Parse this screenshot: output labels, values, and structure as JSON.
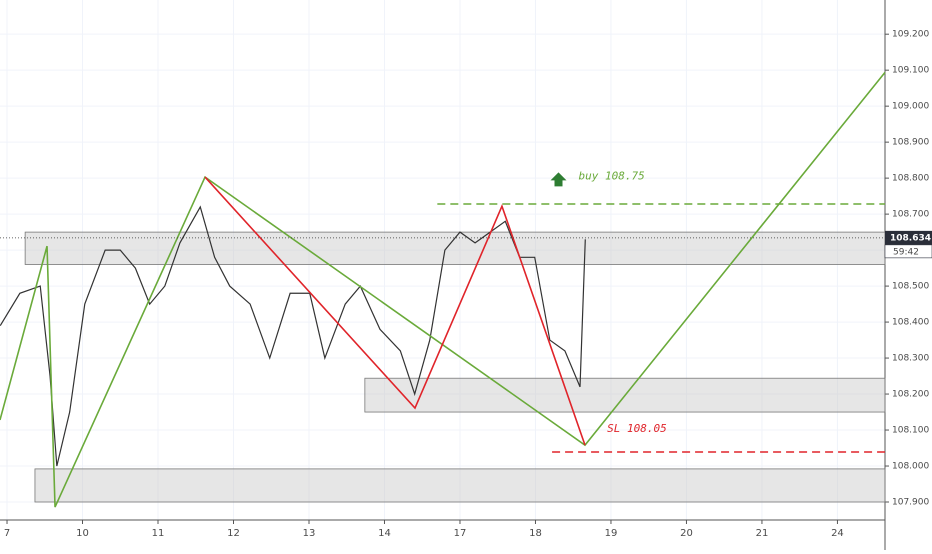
{
  "chart_data": {
    "type": "line",
    "xlim": [
      -0.093,
      11.63
    ],
    "ylim": [
      107.85,
      109.295
    ],
    "grid": true,
    "xticks": [
      {
        "value": 0,
        "label": "7"
      },
      {
        "value": 1,
        "label": "10"
      },
      {
        "value": 2,
        "label": "11"
      },
      {
        "value": 3,
        "label": "12"
      },
      {
        "value": 4,
        "label": "13"
      },
      {
        "value": 5,
        "label": "14"
      },
      {
        "value": 6,
        "label": "17"
      },
      {
        "value": 7,
        "label": "18"
      },
      {
        "value": 8,
        "label": "19"
      },
      {
        "value": 9,
        "label": "20"
      },
      {
        "value": 10,
        "label": "21"
      },
      {
        "value": 11,
        "label": "24"
      }
    ],
    "yticks": [
      {
        "value": 107.9,
        "label": "107.900"
      },
      {
        "value": 108.0,
        "label": "108.000"
      },
      {
        "value": 108.1,
        "label": "108.100"
      },
      {
        "value": 108.2,
        "label": "108.200"
      },
      {
        "value": 108.3,
        "label": "108.300"
      },
      {
        "value": 108.4,
        "label": "108.400"
      },
      {
        "value": 108.5,
        "label": "108.500"
      },
      {
        "value": 108.6,
        "label": "108.600"
      },
      {
        "value": 108.7,
        "label": "108.700"
      },
      {
        "value": 108.8,
        "label": "108.800"
      },
      {
        "value": 108.9,
        "label": "108.900"
      },
      {
        "value": 109.0,
        "label": "109.000"
      },
      {
        "value": 109.1,
        "label": "109.100"
      },
      {
        "value": 109.2,
        "label": "109.200"
      }
    ],
    "zones": [
      {
        "x": [
          0.24,
          11.63
        ],
        "y": [
          108.56,
          108.65
        ]
      },
      {
        "x": [
          4.74,
          11.63
        ],
        "y": [
          108.15,
          108.244
        ]
      },
      {
        "x": [
          0.37,
          11.63
        ],
        "y": [
          107.9,
          107.992
        ]
      }
    ],
    "series": [
      {
        "color": "#333333",
        "x": [
          -0.09,
          0.17,
          0.44,
          0.57,
          0.66,
          0.83,
          1.03,
          1.3,
          1.5,
          1.7,
          1.89,
          2.09,
          2.29,
          2.56,
          2.75,
          2.95,
          3.22,
          3.48,
          3.75,
          4.01,
          4.21,
          4.48,
          4.68,
          4.94,
          5.21,
          5.4,
          5.6,
          5.8,
          6.0,
          6.2,
          6.4,
          6.6,
          6.79,
          6.99,
          7.19,
          7.39,
          7.59,
          7.66
        ],
        "values": [
          108.39,
          108.48,
          108.5,
          108.25,
          108.0,
          108.15,
          108.45,
          108.6,
          108.6,
          108.55,
          108.45,
          108.5,
          108.62,
          108.72,
          108.58,
          108.5,
          108.45,
          108.3,
          108.48,
          108.48,
          108.3,
          108.45,
          108.5,
          108.38,
          108.32,
          108.2,
          108.35,
          108.6,
          108.65,
          108.62,
          108.65,
          108.68,
          108.58,
          108.58,
          108.35,
          108.32,
          108.22,
          108.63
        ]
      },
      {
        "color": "#6aaa3a",
        "x": [
          -0.093,
          0.53,
          0.636,
          2.623,
          7.656,
          11.63
        ],
        "values": [
          108.128,
          108.611,
          107.886,
          108.803,
          108.058,
          109.094
        ]
      },
      {
        "color": "#e0242a",
        "x": [
          2.623,
          5.404,
          6.556,
          7.656
        ],
        "values": [
          108.803,
          108.161,
          108.722,
          108.058
        ]
      }
    ],
    "levels": [
      {
        "value": 108.728,
        "x": [
          5.7,
          11.63
        ],
        "color": "#6aaa3a"
      },
      {
        "value": 108.039,
        "x": [
          7.22,
          11.63
        ],
        "color": "#e0242a"
      }
    ],
    "annotations": [
      {
        "text": "buy 108.75",
        "x": 7.57,
        "y": 108.805,
        "color": "#6aaa3a"
      },
      {
        "text": "SL 108.05",
        "x": 7.95,
        "y": 108.103,
        "color": "#e0242a"
      }
    ],
    "last_price": {
      "value": 108.634,
      "label": "108.634"
    },
    "countdown": "59:42"
  }
}
